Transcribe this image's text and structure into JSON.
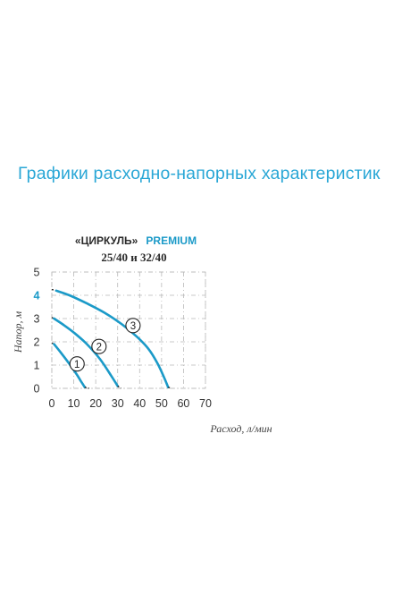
{
  "page": {
    "heading": "Графики расходно-напорных характеристик"
  },
  "colors": {
    "heading": "#2aa7d6",
    "curve": "#1b9ac8",
    "highlight_tick": "#1b9ac8",
    "axis_text": "#333333",
    "grid": "#b9b9b9",
    "dashed_tail": "#222222"
  },
  "chart_data": {
    "type": "line",
    "title_line1_prefix": "«ЦИРКУЛЬ»",
    "title_line1_suffix": "PREMIUM",
    "title_line2": "25/40 и 32/40",
    "xlabel": "Расход, л/мин",
    "ylabel": "Напор, м",
    "xlim": [
      0,
      70
    ],
    "ylim": [
      0,
      5
    ],
    "x_ticks": [
      0,
      10,
      20,
      30,
      40,
      50,
      60,
      70
    ],
    "y_ticks": [
      0,
      1,
      2,
      3,
      4,
      5
    ],
    "highlighted_y_tick": 4,
    "grid": true,
    "series": [
      {
        "name": "1",
        "x": [
          1,
          4,
          8,
          11,
          13,
          15
        ],
        "y": [
          1.9,
          1.55,
          1.05,
          0.65,
          0.35,
          0.05
        ],
        "dashed_tail_to": [
          17,
          0
        ]
      },
      {
        "name": "2",
        "x": [
          1,
          5,
          10,
          16,
          22,
          27,
          30
        ],
        "y": [
          3.0,
          2.75,
          2.4,
          1.9,
          1.25,
          0.55,
          0.1
        ],
        "dashed_tail_to": [
          31.5,
          0
        ]
      },
      {
        "name": "3",
        "x": [
          2,
          8,
          16,
          24,
          32,
          39,
          44,
          48,
          51,
          53
        ],
        "y": [
          4.2,
          4.0,
          3.65,
          3.25,
          2.75,
          2.2,
          1.7,
          1.1,
          0.5,
          0.05
        ],
        "dashed_tail_to": [
          54.5,
          0
        ]
      }
    ],
    "curve_labels": [
      {
        "text": "1",
        "x": 11.5,
        "y": 1.05
      },
      {
        "text": "2",
        "x": 21.5,
        "y": 1.8
      },
      {
        "text": "3",
        "x": 37,
        "y": 2.7
      }
    ]
  }
}
